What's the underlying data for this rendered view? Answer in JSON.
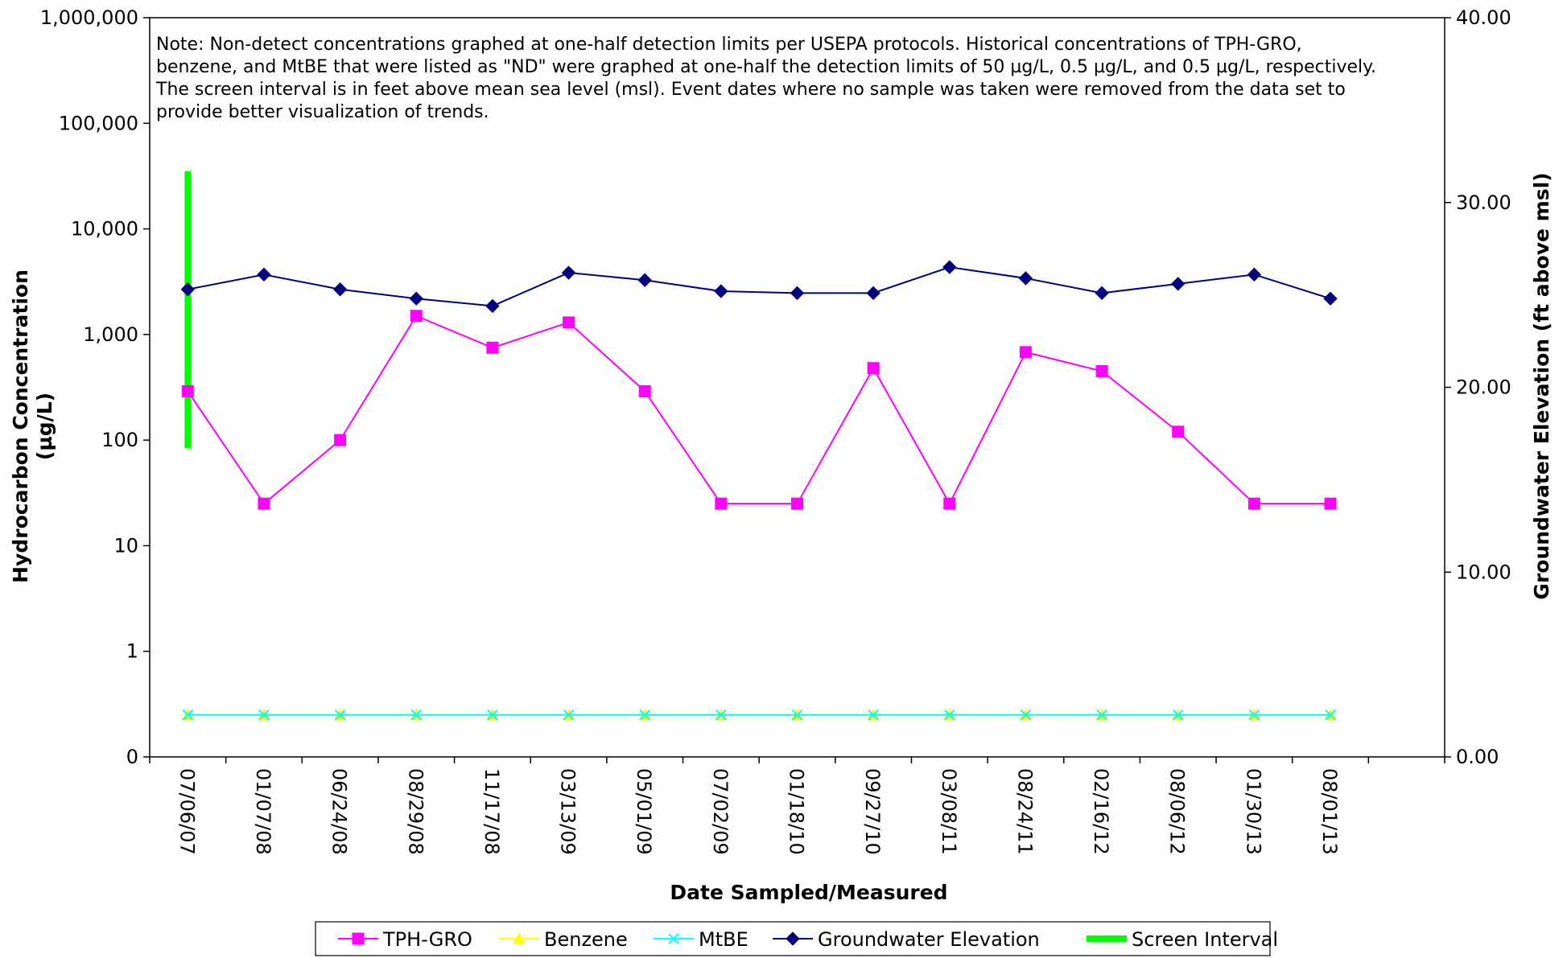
{
  "chart_data": {
    "type": "line",
    "note": [
      "Note: Non-detect  concentrations  graphed at one-half detection limits per USEPA protocols.   Historical concentrations of TPH-GRO,",
      "benzene, and MtBE that were listed as \"ND\" were graphed at one-half the detection limits of 50 µg/L, 0.5 µg/L, and 0.5 µg/L, respectively.",
      "The screen interval is in  feet above mean sea level (msl).  Event dates where no sample was taken were removed from the data set to",
      "provide better visualization of trends."
    ],
    "xlabel": "Date Sampled/Measured",
    "ylabel": [
      "Hydrocarbon Concentration",
      "(µg/L)"
    ],
    "y2label": "Groundwater Elevation (ft above msl)",
    "categories": [
      "07/06/07",
      "01/07/08",
      "06/24/08",
      "08/29/08",
      "11/17/08",
      "03/13/09",
      "05/01/09",
      "07/02/09",
      "01/18/10",
      "09/27/10",
      "03/08/11",
      "08/24/11",
      "02/16/12",
      "08/06/12",
      "01/30/13",
      "08/01/13"
    ],
    "y_axis": {
      "scale": "log",
      "range": [
        0.1,
        1000000
      ],
      "ticks": [
        0.1,
        1,
        10,
        100,
        1000,
        10000,
        100000,
        1000000
      ],
      "tick_labels": [
        "0",
        "1",
        "10",
        "100",
        "1,000",
        "10,000",
        "100,000",
        "1,000,000"
      ]
    },
    "y2_axis": {
      "scale": "linear",
      "range": [
        0,
        40
      ],
      "ticks": [
        0,
        10,
        20,
        30,
        40
      ],
      "tick_labels": [
        "0.00",
        "10.00",
        "20.00",
        "30.00",
        "40.00"
      ]
    },
    "series": [
      {
        "name": "TPH-GRO",
        "axis": "left",
        "color": "#ff00ff",
        "marker": "square",
        "values": [
          290,
          25,
          100,
          1500,
          750,
          1300,
          290,
          25,
          25,
          480,
          25,
          680,
          450,
          120,
          25,
          25
        ]
      },
      {
        "name": "Benzene",
        "axis": "left",
        "color": "#ffff00",
        "marker": "triangle",
        "values": [
          0.25,
          0.25,
          0.25,
          0.25,
          0.25,
          0.25,
          0.25,
          0.25,
          0.25,
          0.25,
          0.25,
          0.25,
          0.25,
          0.25,
          0.25,
          0.25
        ]
      },
      {
        "name": "MtBE",
        "axis": "left",
        "color": "#00ffff",
        "marker": "x",
        "values": [
          0.25,
          0.25,
          0.25,
          0.25,
          0.25,
          0.25,
          0.25,
          0.25,
          0.25,
          0.25,
          0.25,
          0.25,
          0.25,
          0.25,
          0.25,
          0.25
        ]
      },
      {
        "name": "Groundwater Elevation",
        "axis": "right",
        "color": "#000080",
        "marker": "diamond",
        "values": [
          25.3,
          26.1,
          25.3,
          24.8,
          24.4,
          26.2,
          25.8,
          25.2,
          25.1,
          25.1,
          26.5,
          25.9,
          25.1,
          25.6,
          26.1,
          24.8
        ]
      },
      {
        "name": "Screen Interval",
        "axis": "right",
        "color": "#00ff00",
        "marker": "none",
        "category": "07/06/07",
        "range": [
          16.7,
          31.7
        ]
      }
    ],
    "grid": false,
    "legend_position": "bottom"
  }
}
